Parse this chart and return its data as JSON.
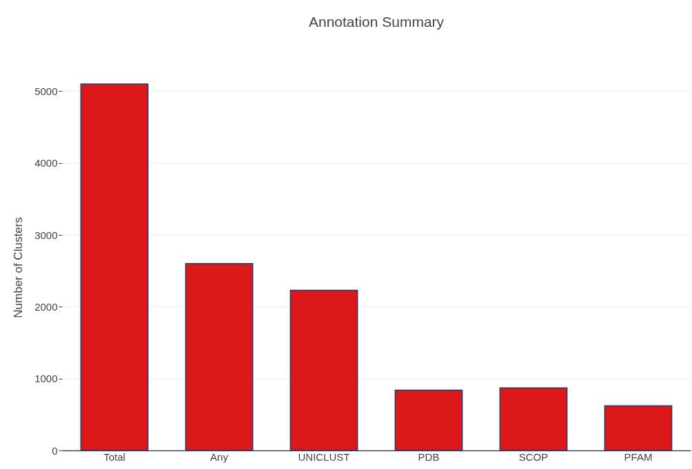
{
  "chart_data": {
    "type": "bar",
    "title": "Annotation Summary",
    "ylabel": "Number of Clusters",
    "categories": [
      "Total",
      "Any",
      "UNICLUST",
      "PDB",
      "SCOP",
      "PFAM"
    ],
    "values": [
      5100,
      2600,
      2230,
      840,
      870,
      620
    ],
    "color": "#db1919",
    "ylim": [
      0,
      5100
    ],
    "yticks": [
      0,
      1000,
      2000,
      3000,
      4000,
      5000
    ],
    "grid": "y"
  }
}
